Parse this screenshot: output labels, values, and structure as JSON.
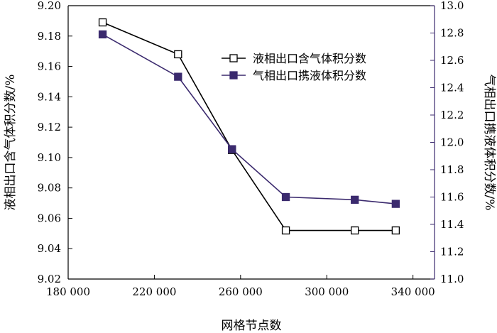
{
  "chart_data": {
    "type": "line",
    "x": [
      196000,
      231000,
      256000,
      281000,
      313000,
      332000
    ],
    "xlim": [
      180000,
      350000
    ],
    "x_ticks": [
      180000,
      220000,
      260000,
      300000,
      340000
    ],
    "x_tick_labels": [
      "180 000",
      "220 000",
      "260 000",
      "300 000",
      "340 000"
    ],
    "xlabel": "网格节点数",
    "y_left": {
      "label": "液相出口含气体积分数/%",
      "range": [
        9.02,
        9.2
      ],
      "ticks": [
        9.02,
        9.04,
        9.06,
        9.08,
        9.1,
        9.12,
        9.14,
        9.16,
        9.18,
        9.2
      ],
      "tick_labels": [
        "9.02",
        "9.04",
        "9.06",
        "9.08",
        "9.10",
        "9.12",
        "9.14",
        "9.16",
        "9.18",
        "9.20"
      ]
    },
    "y_right": {
      "label": "气相出口携液体积分数/%",
      "range": [
        11.0,
        13.0
      ],
      "ticks": [
        11.0,
        11.2,
        11.4,
        11.6,
        11.8,
        12.0,
        12.2,
        12.4,
        12.6,
        12.8,
        13.0
      ],
      "tick_labels": [
        "11.0",
        "11.2",
        "11.4",
        "11.6",
        "11.8",
        "12.0",
        "12.2",
        "12.4",
        "12.6",
        "12.8",
        "13.0"
      ]
    },
    "series": [
      {
        "name": "液相出口含气体积分数",
        "axis": "left",
        "marker": "open-square",
        "color": "#000000",
        "values": [
          9.189,
          9.168,
          9.105,
          9.052,
          9.052,
          9.052
        ]
      },
      {
        "name": "气相出口携液体积分数",
        "axis": "right",
        "marker": "filled-square",
        "color": "#3b2a6e",
        "values": [
          12.79,
          12.48,
          11.95,
          11.6,
          11.58,
          11.55
        ]
      }
    ],
    "legend": {
      "placement": "top-right"
    },
    "grid": false
  }
}
